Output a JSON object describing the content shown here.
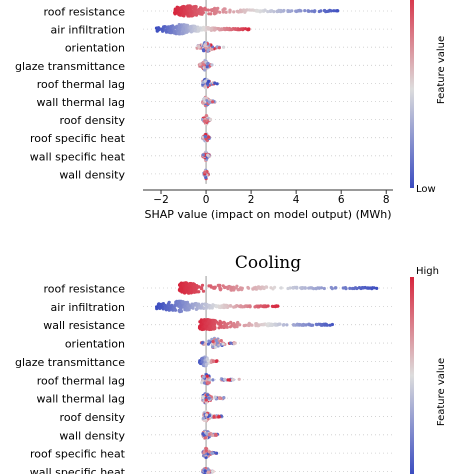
{
  "chart_data": [
    {
      "type": "scatter",
      "subtype": "shap-beeswarm",
      "title": "",
      "xlabel": "SHAP value (impact on model output) (MWh)",
      "xlim": [
        -2.8,
        8.3
      ],
      "xticks": [
        -2,
        0,
        2,
        4,
        6,
        8
      ],
      "colorbar": {
        "label": "Feature value",
        "low": "Low",
        "high": ""
      },
      "features": [
        {
          "name": "roof resistance",
          "min": -1.4,
          "max": 6.0,
          "peak": -0.8,
          "grad": "high-low"
        },
        {
          "name": "air infiltration",
          "min": -2.2,
          "max": 1.9,
          "peak": -1.2,
          "grad": "low-high"
        },
        {
          "name": "orientation",
          "min": -0.4,
          "max": 0.8,
          "peak": 0.0,
          "grad": "mixed"
        },
        {
          "name": "glaze transmittance",
          "min": -0.3,
          "max": 0.3,
          "peak": -0.05,
          "grad": "mixed"
        },
        {
          "name": "roof thermal lag",
          "min": -0.15,
          "max": 0.5,
          "peak": 0.0,
          "grad": "mixed"
        },
        {
          "name": "wall thermal lag",
          "min": -0.1,
          "max": 0.4,
          "peak": 0.0,
          "grad": "mixed"
        },
        {
          "name": "roof density",
          "min": -0.15,
          "max": 0.2,
          "peak": 0.0,
          "grad": "mixed"
        },
        {
          "name": "roof specific heat",
          "min": -0.15,
          "max": 0.15,
          "peak": 0.0,
          "grad": "mixed"
        },
        {
          "name": "wall specific heat",
          "min": -0.15,
          "max": 0.15,
          "peak": 0.0,
          "grad": "mixed"
        },
        {
          "name": "wall density",
          "min": -0.1,
          "max": 0.1,
          "peak": 0.0,
          "grad": "mixed"
        }
      ]
    },
    {
      "type": "scatter",
      "subtype": "shap-beeswarm",
      "title": "Cooling",
      "xlabel": "",
      "xlim": [
        -2.8,
        8.3
      ],
      "xticks": [],
      "colorbar": {
        "label": "Feature value",
        "low": "",
        "high": "High"
      },
      "features": [
        {
          "name": "roof resistance",
          "min": -1.2,
          "max": 7.6,
          "peak": -0.9,
          "grad": "high-low"
        },
        {
          "name": "air infiltration",
          "min": -2.2,
          "max": 3.2,
          "peak": -1.2,
          "grad": "low-high"
        },
        {
          "name": "wall resistance",
          "min": -0.3,
          "max": 5.8,
          "peak": 0.0,
          "grad": "high-low"
        },
        {
          "name": "orientation",
          "min": -0.2,
          "max": 1.3,
          "peak": 0.4,
          "grad": "mixed"
        },
        {
          "name": "glaze transmittance",
          "min": -0.3,
          "max": 0.5,
          "peak": -0.05,
          "grad": "low-high"
        },
        {
          "name": "roof thermal lag",
          "min": -0.2,
          "max": 1.5,
          "peak": 0.0,
          "grad": "mixed"
        },
        {
          "name": "wall thermal lag",
          "min": -0.15,
          "max": 0.8,
          "peak": 0.0,
          "grad": "mixed"
        },
        {
          "name": "roof density",
          "min": -0.1,
          "max": 0.7,
          "peak": 0.0,
          "grad": "mixed"
        },
        {
          "name": "wall density",
          "min": -0.1,
          "max": 0.5,
          "peak": 0.0,
          "grad": "mixed"
        },
        {
          "name": "roof specific heat",
          "min": -0.1,
          "max": 0.5,
          "peak": 0.0,
          "grad": "mixed"
        },
        {
          "name": "wall specific heat",
          "min": -0.1,
          "max": 0.3,
          "peak": 0.0,
          "grad": "mixed"
        }
      ]
    }
  ],
  "colors": {
    "high": "#d7263d",
    "low": "#3b4cc0",
    "mid": "#dddddd",
    "axis": "#999999"
  }
}
